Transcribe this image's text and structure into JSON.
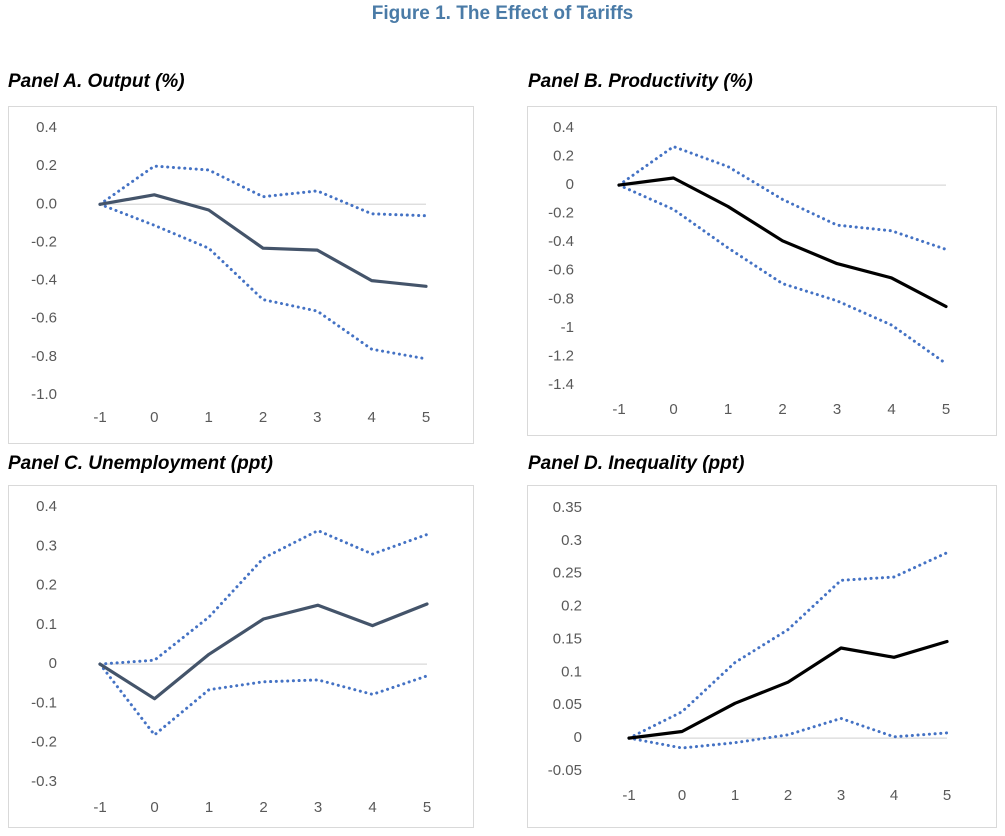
{
  "figure": {
    "title": "Figure 1. The Effect of Tariffs"
  },
  "colors": {
    "title": "#4a7ba7",
    "ci_line": "#4472c4",
    "zero_line": "#d9d9d9",
    "tick_text": "#595959"
  },
  "chart_data": [
    {
      "id": "A",
      "type": "line",
      "title": "Panel A. Output (%)",
      "x": [
        "-1",
        "0",
        "1",
        "2",
        "3",
        "4",
        "5"
      ],
      "ylim": [
        -1.0,
        0.4
      ],
      "yticks": [
        "0.4",
        "0.2",
        "0.0",
        "-0.2",
        "-0.4",
        "-0.6",
        "-0.8",
        "-1.0"
      ],
      "ytick_values": [
        0.4,
        0.2,
        0.0,
        -0.2,
        -0.4,
        -0.6,
        -0.8,
        -1.0
      ],
      "grid": false,
      "point_color": "#44546a",
      "series": [
        {
          "role": "estimate",
          "values": [
            0,
            0.05,
            -0.03,
            -0.23,
            -0.24,
            -0.4,
            -0.43
          ]
        },
        {
          "role": "upper",
          "values": [
            0,
            0.2,
            0.18,
            0.04,
            0.07,
            -0.05,
            -0.06
          ]
        },
        {
          "role": "lower",
          "values": [
            0,
            -0.11,
            -0.23,
            -0.5,
            -0.56,
            -0.76,
            -0.81
          ]
        }
      ]
    },
    {
      "id": "B",
      "type": "line",
      "title": "Panel B. Productivity (%)",
      "x": [
        "-1",
        "0",
        "1",
        "2",
        "3",
        "4",
        "5"
      ],
      "ylim": [
        -1.4,
        0.4
      ],
      "yticks": [
        "0.4",
        "0.2",
        "0",
        "-0.2",
        "-0.4",
        "-0.6",
        "-0.8",
        "-1",
        "-1.2",
        "-1.4"
      ],
      "ytick_values": [
        0.4,
        0.2,
        0,
        -0.2,
        -0.4,
        -0.6,
        -0.8,
        -1.0,
        -1.2,
        -1.4
      ],
      "grid": false,
      "point_color": "#000000",
      "series": [
        {
          "role": "estimate",
          "values": [
            0,
            0.05,
            -0.15,
            -0.39,
            -0.55,
            -0.65,
            -0.85
          ]
        },
        {
          "role": "upper",
          "values": [
            0,
            0.27,
            0.13,
            -0.1,
            -0.28,
            -0.32,
            -0.45
          ]
        },
        {
          "role": "lower",
          "values": [
            0,
            -0.17,
            -0.44,
            -0.69,
            -0.81,
            -0.98,
            -1.25
          ]
        }
      ]
    },
    {
      "id": "C",
      "type": "line",
      "title": "Panel C. Unemployment (ppt)",
      "x": [
        "-1",
        "0",
        "1",
        "2",
        "3",
        "4",
        "5"
      ],
      "ylim": [
        -0.3,
        0.4
      ],
      "yticks": [
        "0.4",
        "0.3",
        "0.2",
        "0.1",
        "0",
        "-0.1",
        "-0.2",
        "-0.3"
      ],
      "ytick_values": [
        0.4,
        0.3,
        0.2,
        0.1,
        0,
        -0.1,
        -0.2,
        -0.3
      ],
      "grid": false,
      "point_color": "#44546a",
      "series": [
        {
          "role": "estimate",
          "values": [
            0,
            -0.088,
            0.025,
            0.115,
            0.15,
            0.098,
            0.153
          ]
        },
        {
          "role": "upper",
          "values": [
            0,
            0.01,
            0.12,
            0.27,
            0.34,
            0.28,
            0.33
          ]
        },
        {
          "role": "lower",
          "values": [
            0,
            -0.18,
            -0.065,
            -0.045,
            -0.04,
            -0.077,
            -0.03
          ]
        }
      ]
    },
    {
      "id": "D",
      "type": "line",
      "title": "Panel D. Inequality (ppt)",
      "x": [
        "-1",
        "0",
        "1",
        "2",
        "3",
        "4",
        "5"
      ],
      "ylim": [
        -0.05,
        0.35
      ],
      "yticks": [
        "0.35",
        "0.3",
        "0.25",
        "0.2",
        "0.15",
        "0.1",
        "0.05",
        "0",
        "-0.05"
      ],
      "ytick_values": [
        0.35,
        0.3,
        0.25,
        0.2,
        0.15,
        0.1,
        0.05,
        0,
        -0.05
      ],
      "grid": false,
      "point_color": "#000000",
      "series": [
        {
          "role": "estimate",
          "values": [
            0,
            0.01,
            0.053,
            0.085,
            0.137,
            0.123,
            0.147
          ]
        },
        {
          "role": "upper",
          "values": [
            0,
            0.04,
            0.115,
            0.165,
            0.24,
            0.245,
            0.282
          ]
        },
        {
          "role": "lower",
          "values": [
            0,
            -0.015,
            -0.007,
            0.005,
            0.03,
            0.002,
            0.008
          ]
        }
      ]
    }
  ]
}
